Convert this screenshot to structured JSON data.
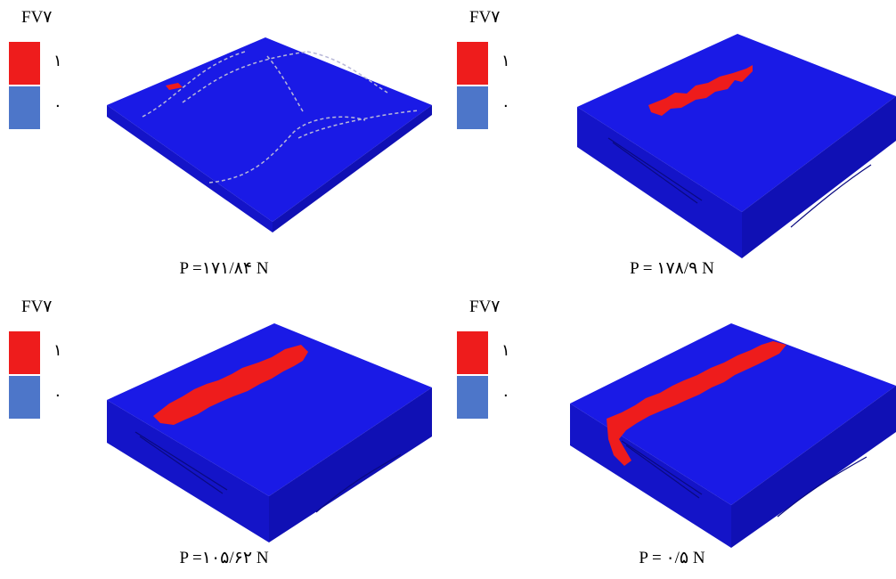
{
  "colors": {
    "failed": "#ee1c1c",
    "intact": "#4d76c9",
    "plate_top": "#1a1ae6",
    "plate_left": "#1414c8",
    "plate_right": "#1010b4"
  },
  "panels": [
    {
      "legend_title": "FV۷",
      "legend_high": "۱",
      "legend_low": "۰",
      "caption": "P =۱۷۱/۸۴ N"
    },
    {
      "legend_title": "FV۷",
      "legend_high": "۱",
      "legend_low": "۰",
      "caption": "P = ۱۷۸/۹ N"
    },
    {
      "legend_title": "FV۷",
      "legend_high": "۱",
      "legend_low": "۰",
      "caption": "P =۱۰۵/۶۲ N"
    },
    {
      "legend_title": "FV۷",
      "legend_high": "۱",
      "legend_low": "۰",
      "caption": "P = ۰/۵ N"
    }
  ]
}
